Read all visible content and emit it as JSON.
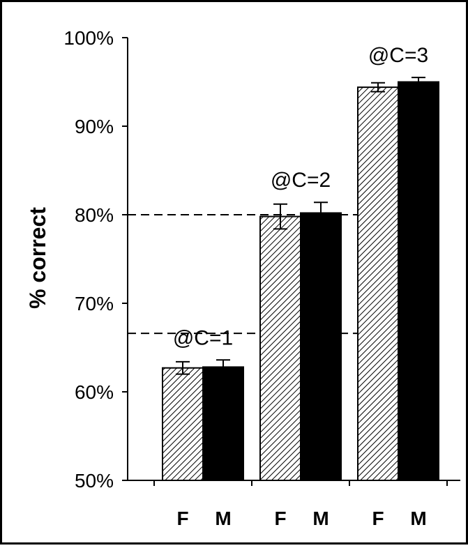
{
  "chart_data": {
    "type": "bar",
    "title": "",
    "xlabel": "",
    "ylabel": "% correct",
    "ylim": [
      50,
      100
    ],
    "yticks": [
      "50%",
      "60%",
      "70%",
      "80%",
      "90%",
      "100%"
    ],
    "ytick_values": [
      50,
      60,
      70,
      80,
      90,
      100
    ],
    "groups": [
      {
        "label": "@C=1",
        "bars": [
          {
            "category": "F",
            "value": 62.7,
            "error": 0.7,
            "fill": "hatched"
          },
          {
            "category": "M",
            "value": 62.8,
            "error": 0.8,
            "fill": "solid"
          }
        ]
      },
      {
        "label": "@C=2",
        "bars": [
          {
            "category": "F",
            "value": 79.8,
            "error": 1.4,
            "fill": "hatched"
          },
          {
            "category": "M",
            "value": 80.2,
            "error": 1.2,
            "fill": "solid"
          }
        ]
      },
      {
        "label": "@C=3",
        "bars": [
          {
            "category": "F",
            "value": 94.4,
            "error": 0.5,
            "fill": "hatched"
          },
          {
            "category": "M",
            "value": 95.0,
            "error": 0.5,
            "fill": "solid"
          }
        ]
      }
    ],
    "reference_lines": [
      {
        "value": 66.6,
        "style": "dashed"
      },
      {
        "value": 80.0,
        "style": "dashed"
      }
    ],
    "grid": false,
    "colors": {
      "solid": "#000000",
      "hatch": "#000000",
      "background": "#ffffff"
    }
  }
}
